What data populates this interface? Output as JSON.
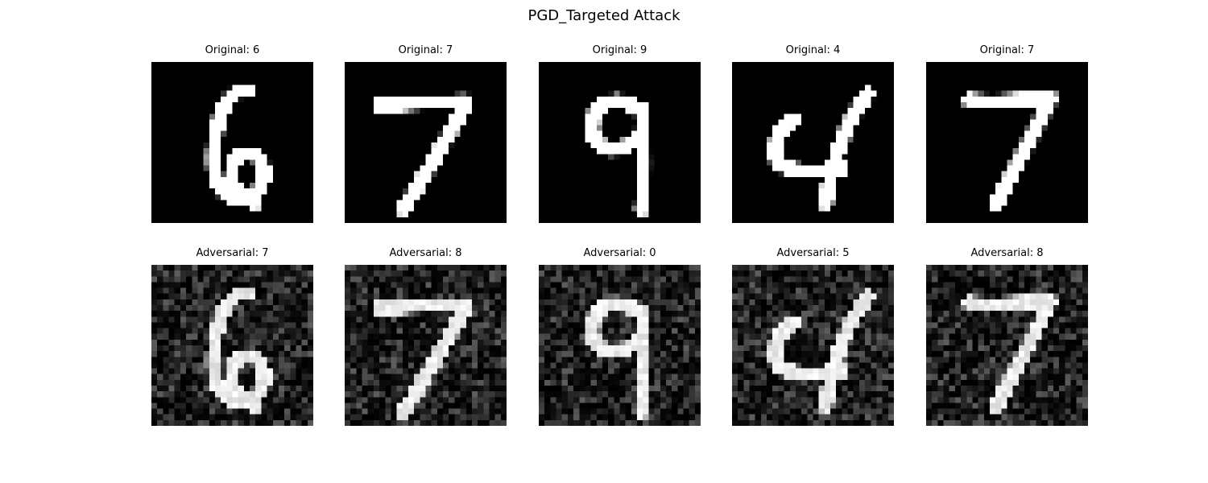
{
  "figure": {
    "title": "PGD_Targeted Attack"
  },
  "rows": [
    {
      "kind": "original",
      "cells": [
        {
          "label": "Original: 6",
          "digit": "6"
        },
        {
          "label": "Original: 7",
          "digit": "7"
        },
        {
          "label": "Original: 9",
          "digit": "9"
        },
        {
          "label": "Original: 4",
          "digit": "4"
        },
        {
          "label": "Original: 7",
          "digit": "7"
        }
      ]
    },
    {
      "kind": "adversarial",
      "cells": [
        {
          "label": "Adversarial: 7",
          "digit": "6"
        },
        {
          "label": "Adversarial: 8",
          "digit": "7"
        },
        {
          "label": "Adversarial: 0",
          "digit": "9"
        },
        {
          "label": "Adversarial: 5",
          "digit": "4"
        },
        {
          "label": "Adversarial: 8",
          "digit": "7"
        }
      ]
    }
  ],
  "colors": {
    "background": "#ffffff",
    "image_background": "#000000",
    "stroke": "#ffffff"
  }
}
